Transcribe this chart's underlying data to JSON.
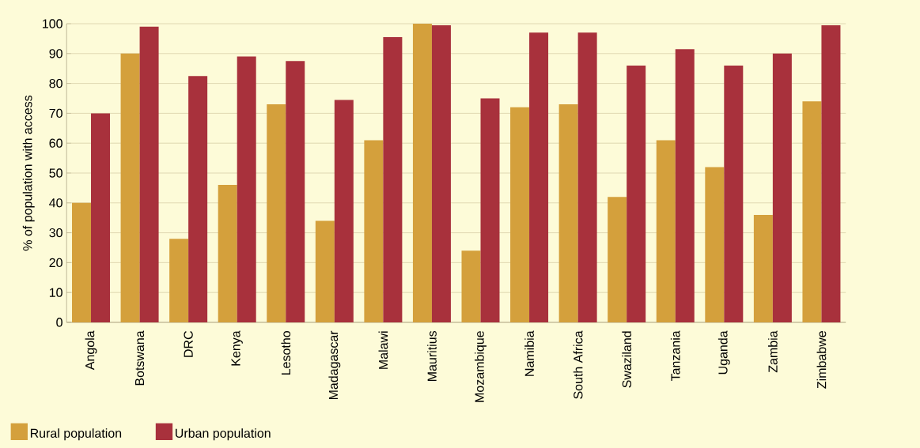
{
  "chart_data": {
    "type": "bar",
    "ylabel": "% of population with access",
    "categories": [
      "Angola",
      "Botswana",
      "DRC",
      "Kenya",
      "Lesotho",
      "Madagascar",
      "Malawi",
      "Mauritius",
      "Mozambique",
      "Namibia",
      "South Africa",
      "Swaziland",
      "Tanzania",
      "Uganda",
      "Zambia",
      "Zimbabwe"
    ],
    "series": [
      {
        "name": "Rural population",
        "color": "#d4a03c",
        "values": [
          40,
          90,
          28,
          46,
          73,
          34,
          61,
          100,
          24,
          72,
          73,
          42,
          61,
          52,
          36,
          74
        ]
      },
      {
        "name": "Urban population",
        "color": "#a8313c",
        "values": [
          70,
          99,
          82.5,
          89,
          87.5,
          74.5,
          95.5,
          99.5,
          75,
          97,
          97,
          86,
          91.5,
          86,
          90,
          99.5
        ]
      }
    ],
    "ylim": [
      0,
      100
    ],
    "yticks": [
      0,
      10,
      20,
      30,
      40,
      50,
      60,
      70,
      80,
      90,
      100
    ],
    "grid": "y",
    "legend": "bottom left"
  }
}
